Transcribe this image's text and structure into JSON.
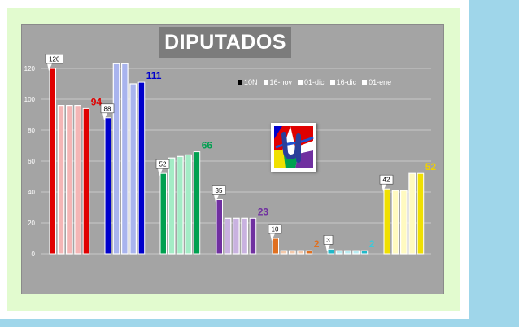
{
  "chart_data": {
    "type": "bar",
    "title": "DIPUTADOS",
    "ylim": [
      0,
      140
    ],
    "yticks": [
      0,
      20,
      40,
      60,
      80,
      100,
      120
    ],
    "legend_position": "top-right",
    "series": [
      {
        "name": "10N",
        "values": [
          120,
          88,
          52,
          35,
          10,
          3,
          42
        ]
      },
      {
        "name": "16-nov",
        "values": [
          96,
          123,
          62,
          23,
          2,
          2,
          41
        ]
      },
      {
        "name": "01-dic",
        "values": [
          96,
          123,
          63,
          23,
          2,
          2,
          41
        ]
      },
      {
        "name": "16-dic",
        "values": [
          96,
          110,
          64,
          23,
          2,
          2,
          52
        ]
      },
      {
        "name": "01-ene",
        "values": [
          94,
          111,
          66,
          23,
          2,
          2,
          52
        ]
      }
    ],
    "group_colors": [
      {
        "strong": "#e00000",
        "light": "#f4b6b6",
        "label_color": "#e00000"
      },
      {
        "strong": "#0000cc",
        "light": "#a9b4ee",
        "label_color": "#0000cc"
      },
      {
        "strong": "#00a050",
        "light": "#a4ecc6",
        "label_color": "#00a050"
      },
      {
        "strong": "#7030a0",
        "light": "#c9b2e0",
        "label_color": "#7030a0"
      },
      {
        "strong": "#e07020",
        "light": "#f4c9aa",
        "label_color": "#e07020"
      },
      {
        "strong": "#20b8c8",
        "light": "#b8ecf2",
        "label_color": "#40c8d8"
      },
      {
        "strong": "#f0e000",
        "light": "#fffac0",
        "label_color": "#f0d000"
      }
    ],
    "start_labels": [
      "120",
      "88",
      "52",
      "35",
      "10",
      "3",
      "42"
    ],
    "end_labels": [
      "94",
      "111",
      "66",
      "23",
      "2",
      "2",
      "52"
    ]
  }
}
